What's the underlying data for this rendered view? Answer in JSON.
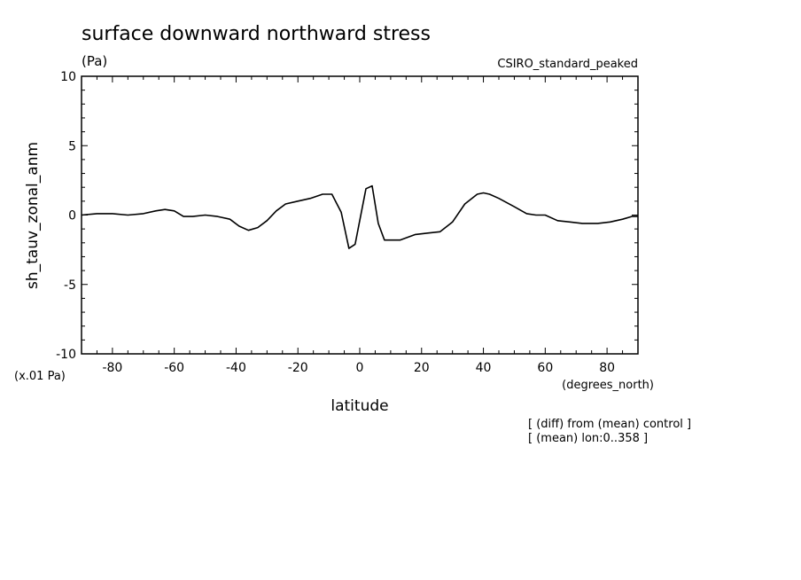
{
  "chart_data": {
    "type": "line",
    "title": "surface downward northward stress",
    "units": "(Pa)",
    "model": "CSIRO_standard_peaked",
    "ylabel": "sh_tauv_zonal_anm",
    "yscale_note": "(x.01 Pa)",
    "xlabel": "latitude",
    "xunits": "(degrees_north)",
    "notes": [
      "[ (diff) from (mean) control ]",
      "[ (mean) lon:0..358 ]"
    ],
    "xlim": [
      -90,
      90
    ],
    "ylim": [
      -10,
      10
    ],
    "xticks": [
      -80,
      -60,
      -40,
      -20,
      0,
      20,
      40,
      60,
      80
    ],
    "yticks": [
      -10,
      -5,
      0,
      5,
      10
    ],
    "grid": false,
    "series": [
      {
        "color": "#000000",
        "x": [
          -90,
          -85,
          -80,
          -75,
          -70,
          -66,
          -63,
          -60,
          -57,
          -54,
          -50,
          -46,
          -42,
          -39,
          -36,
          -33,
          -30,
          -27,
          -24,
          -20,
          -16,
          -12,
          -9,
          -6,
          -3.5,
          -1.5,
          2,
          4,
          6,
          8,
          13,
          18,
          22,
          26,
          30,
          34,
          38,
          40,
          42,
          45,
          50,
          54,
          57,
          60,
          64,
          68,
          72,
          77,
          81,
          85,
          88,
          90
        ],
        "y": [
          0.0,
          0.1,
          0.1,
          0.0,
          0.1,
          0.3,
          0.4,
          0.3,
          -0.1,
          -0.1,
          0.0,
          -0.1,
          -0.3,
          -0.8,
          -1.1,
          -0.9,
          -0.4,
          0.3,
          0.8,
          1.0,
          1.2,
          1.5,
          1.5,
          0.2,
          -2.4,
          -2.1,
          1.9,
          2.1,
          -0.6,
          -1.8,
          -1.8,
          -1.4,
          -1.3,
          -1.2,
          -0.5,
          0.8,
          1.5,
          1.6,
          1.5,
          1.2,
          0.6,
          0.1,
          0.0,
          0.0,
          -0.4,
          -0.5,
          -0.6,
          -0.6,
          -0.5,
          -0.3,
          -0.1,
          -0.1
        ]
      }
    ]
  }
}
